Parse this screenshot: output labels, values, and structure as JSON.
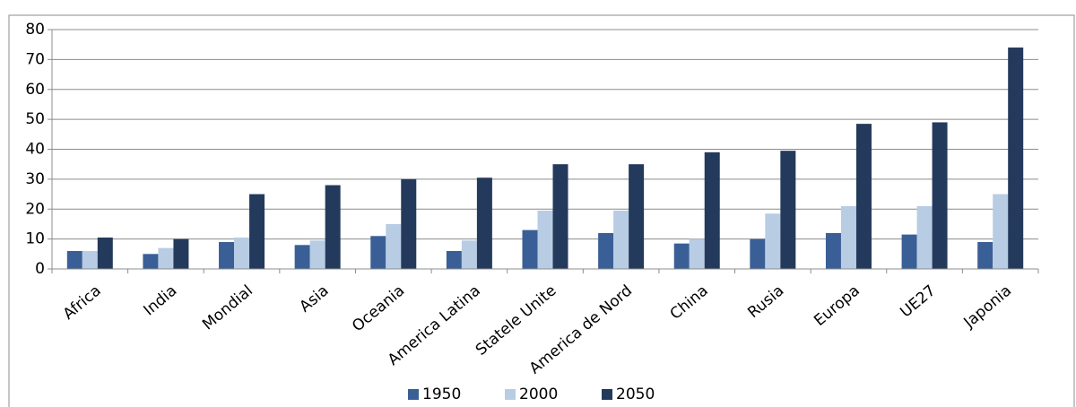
{
  "chart_data": {
    "type": "bar",
    "categories": [
      "Africa",
      "India",
      "Mondial",
      "Asia",
      "Oceania",
      "America Latina",
      "Statele Unite",
      "America de Nord",
      "China",
      "Rusia",
      "Europa",
      "UE27",
      "Japonia"
    ],
    "series": [
      {
        "name": "1950",
        "color": "#3a5f96",
        "values": [
          6,
          5,
          9,
          8,
          11,
          6,
          13,
          12,
          8.5,
          10,
          12,
          11.5,
          9
        ]
      },
      {
        "name": "2000",
        "color": "#b8cce4",
        "values": [
          6,
          7,
          10.5,
          9.5,
          15,
          9.5,
          19.5,
          19.5,
          10,
          18.5,
          21,
          21,
          25
        ]
      },
      {
        "name": "2050",
        "color": "#243a5c",
        "values": [
          10.5,
          10,
          25,
          28,
          30,
          30.5,
          35,
          35,
          39,
          39.5,
          48.5,
          49,
          74
        ]
      }
    ],
    "ylim": [
      0,
      80
    ],
    "yticks": [
      0,
      10,
      20,
      30,
      40,
      50,
      60,
      70,
      80
    ],
    "grid": true,
    "legend": "bottom"
  }
}
